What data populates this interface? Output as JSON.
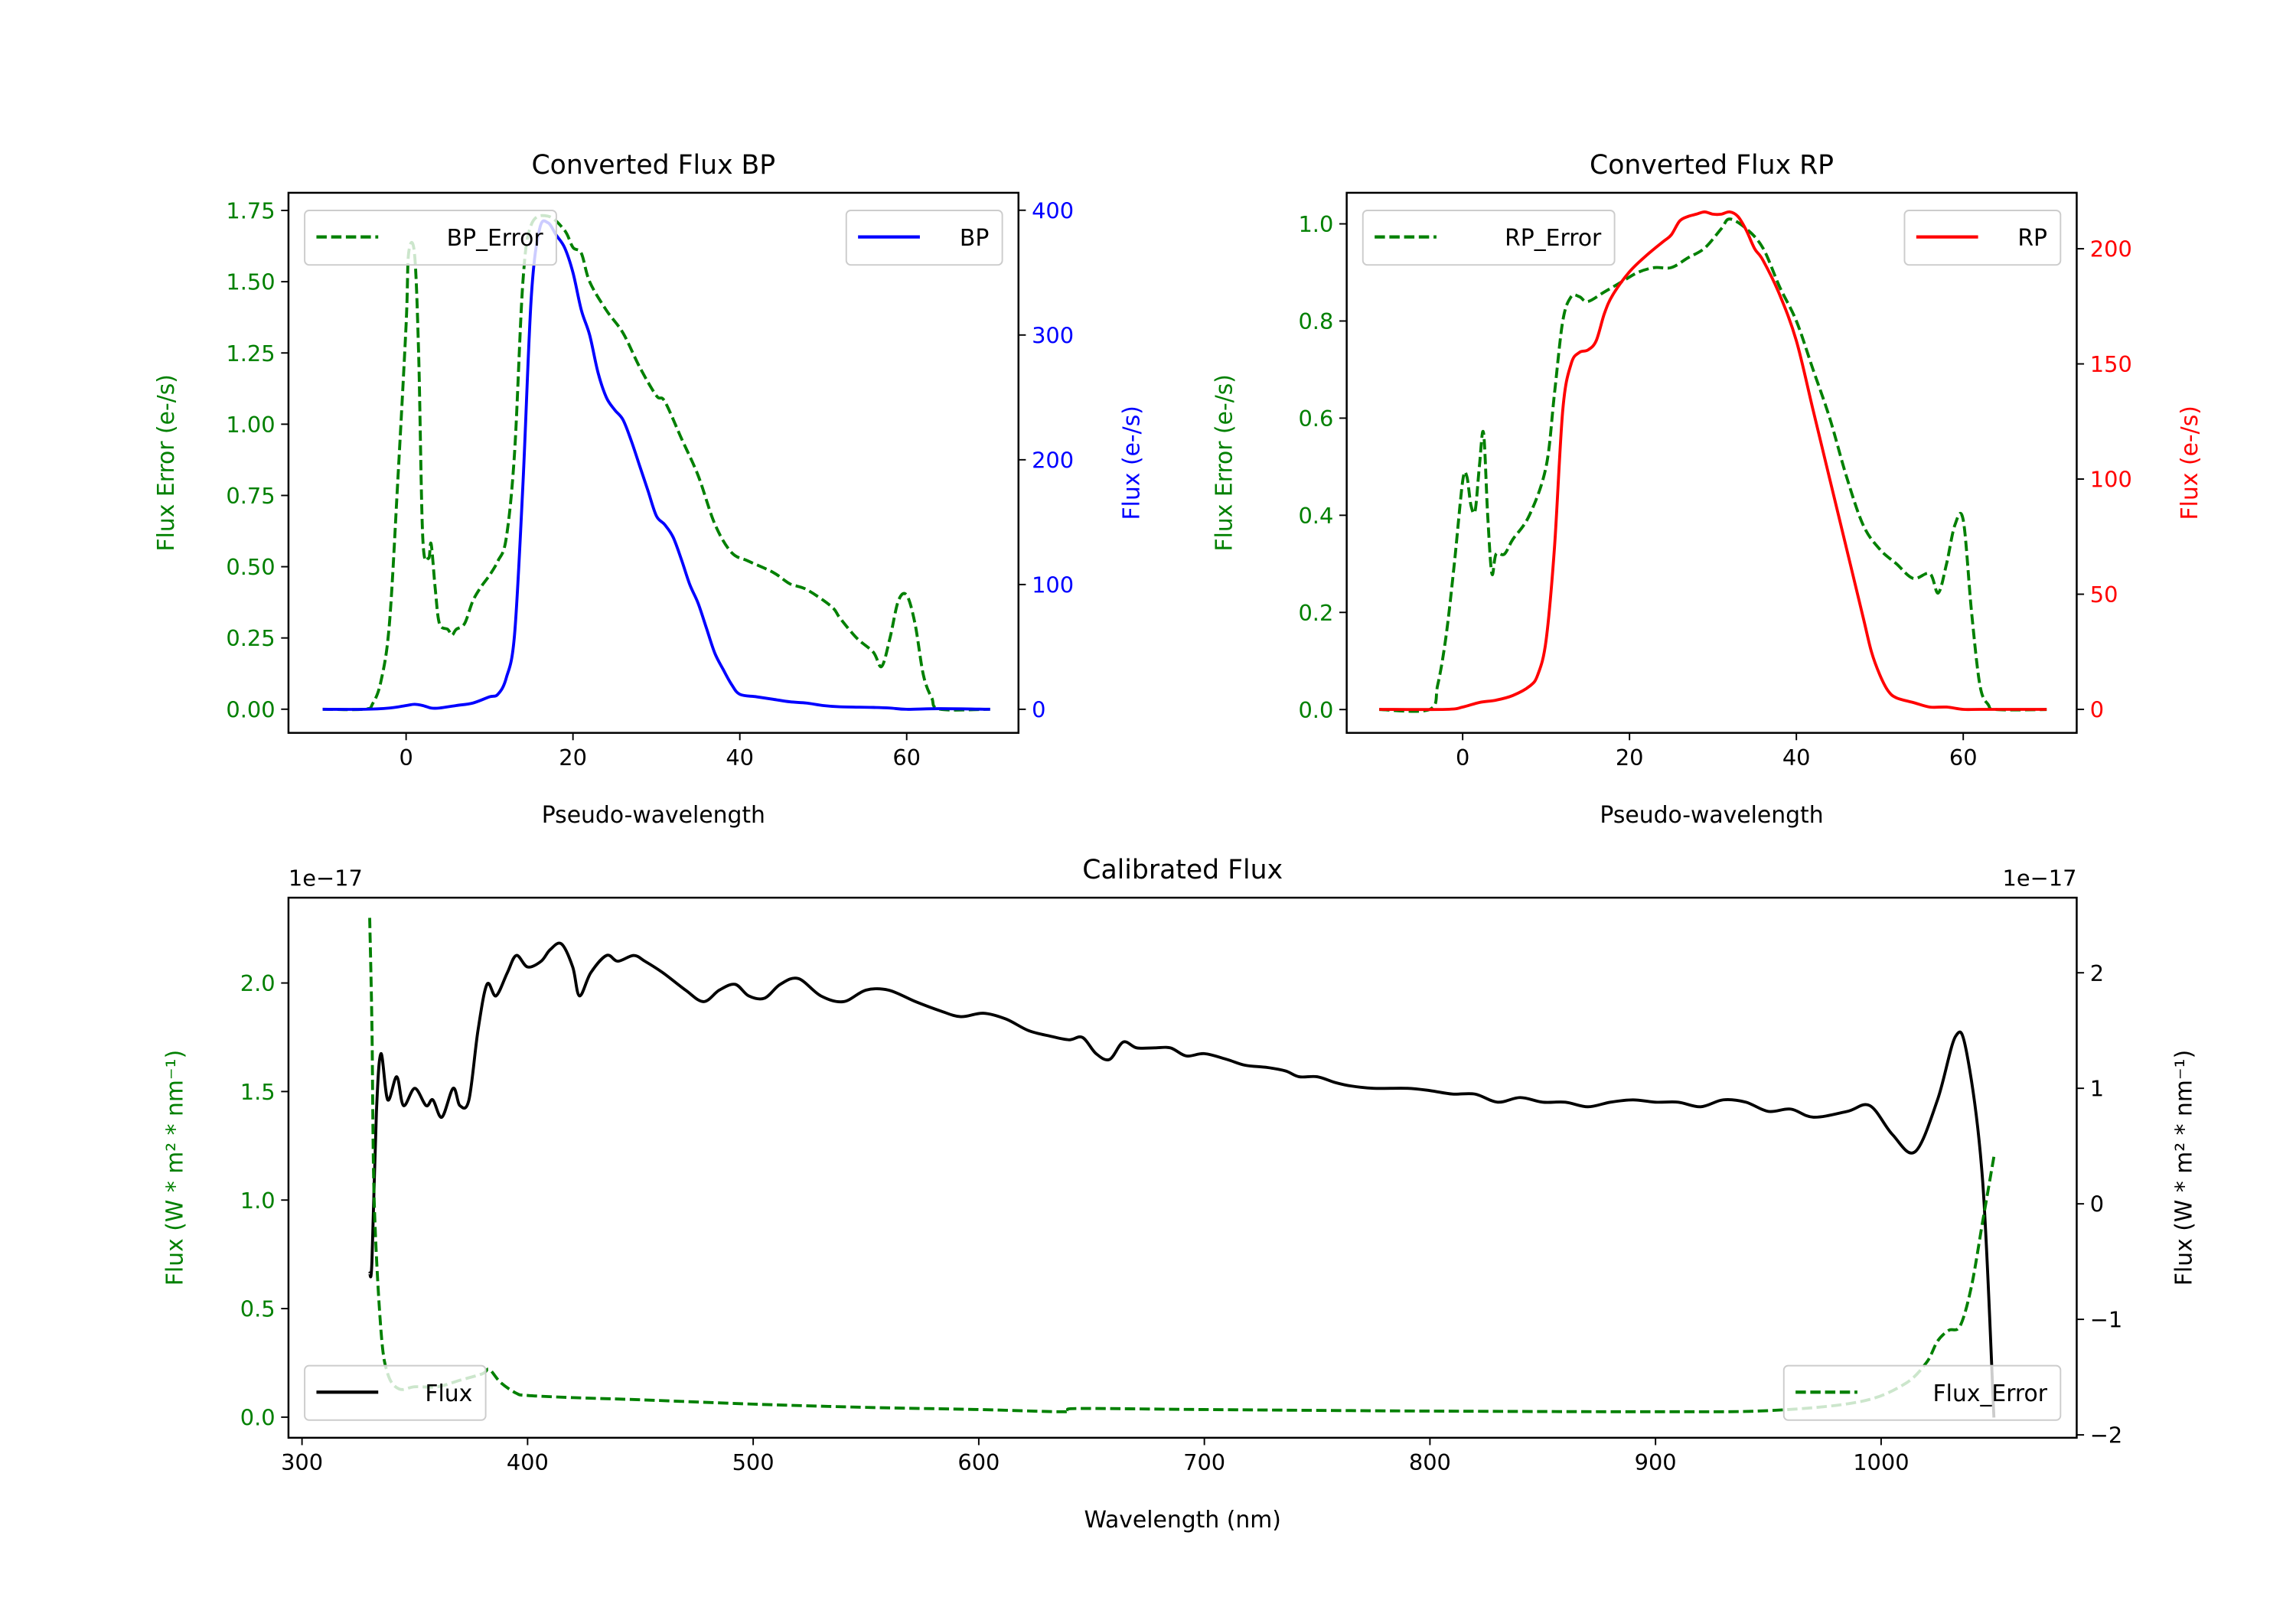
{
  "chart_data": [
    {
      "type": "line",
      "title": "Converted Flux BP",
      "xlabel": "Pseudo-wavelength",
      "ylabel_left": "Flux Error (e-/s)",
      "ylabel_right": "Flux (e-/s)",
      "left_color": "#008000",
      "right_color": "#0000ff",
      "xlim": [
        -14.1,
        73.4
      ],
      "ylim_left": [
        -0.083,
        1.812
      ],
      "ylim_right": [
        -18.9,
        414
      ],
      "xticks": [
        "0",
        "20",
        "40",
        "60"
      ],
      "yticks_left": [
        "0.00",
        "0.25",
        "0.50",
        "0.75",
        "1.00",
        "1.25",
        "1.50",
        "1.75"
      ],
      "yticks_right": [
        "0",
        "100",
        "200",
        "300",
        "400"
      ],
      "offset_left": "",
      "offset_right": "",
      "series": [
        {
          "name": "BP_Error",
          "axis": "left",
          "color": "#008000",
          "style": "dashed",
          "x": [
            -10,
            -5,
            -4,
            -3,
            -2,
            -1,
            0,
            0.3,
            1,
            1.5,
            2,
            2.7,
            3,
            3.5,
            4,
            5,
            5.5,
            6,
            7,
            8,
            9,
            10,
            11,
            12,
            13,
            14,
            15,
            17,
            19,
            20,
            21,
            22,
            24,
            26,
            28,
            30,
            31,
            33,
            35,
            37,
            39,
            41,
            44,
            46,
            48,
            51,
            52,
            54,
            56,
            57,
            58,
            59,
            60,
            61,
            62,
            63,
            64,
            70
          ],
          "y": [
            0,
            0,
            0.02,
            0.1,
            0.3,
            0.8,
            1.35,
            1.6,
            1.6,
            1.25,
            0.6,
            0.53,
            0.58,
            0.42,
            0.3,
            0.28,
            0.26,
            0.28,
            0.3,
            0.38,
            0.43,
            0.47,
            0.52,
            0.6,
            0.9,
            1.5,
            1.7,
            1.73,
            1.68,
            1.62,
            1.6,
            1.5,
            1.4,
            1.32,
            1.2,
            1.1,
            1.08,
            0.95,
            0.82,
            0.65,
            0.55,
            0.52,
            0.48,
            0.44,
            0.42,
            0.36,
            0.32,
            0.25,
            0.2,
            0.15,
            0.25,
            0.38,
            0.4,
            0.3,
            0.12,
            0.04,
            0,
            0
          ]
        },
        {
          "name": "BP",
          "axis": "right",
          "color": "#0000ff",
          "style": "solid",
          "x": [
            -10,
            -5,
            -2,
            0,
            1,
            2,
            3,
            4,
            6,
            8,
            10,
            11,
            12,
            13,
            14,
            15,
            16,
            17,
            18,
            19,
            20,
            21,
            22,
            23,
            24,
            25,
            26,
            27,
            28,
            29,
            30,
            31,
            32,
            33,
            34,
            35,
            36,
            37,
            38,
            39,
            40,
            42,
            44,
            46,
            48,
            50,
            52,
            56,
            58,
            60,
            64,
            70
          ],
          "y": [
            0,
            0,
            1,
            3,
            4,
            3,
            1,
            1,
            3,
            5,
            10,
            12,
            25,
            60,
            180,
            330,
            385,
            390,
            380,
            370,
            350,
            320,
            300,
            270,
            250,
            240,
            232,
            215,
            195,
            175,
            155,
            148,
            138,
            120,
            100,
            85,
            65,
            45,
            32,
            20,
            12,
            10,
            8,
            6,
            5,
            3,
            2,
            1.5,
            1,
            0,
            0.5,
            0
          ]
        }
      ],
      "legends": [
        [
          "BP_Error"
        ],
        [
          "BP"
        ]
      ]
    },
    {
      "type": "line",
      "title": "Converted Flux RP",
      "xlabel": "Pseudo-wavelength",
      "ylabel_left": "Flux Error (e-/s)",
      "ylabel_right": "Flux (e-/s)",
      "left_color": "#008000",
      "right_color": "#ff0000",
      "xlim": [
        -13.9,
        73.6
      ],
      "ylim_left": [
        -0.048,
        1.064
      ],
      "ylim_right": [
        -10.2,
        224.3
      ],
      "xticks": [
        "0",
        "20",
        "40",
        "60"
      ],
      "yticks_left": [
        "0.0",
        "0.2",
        "0.4",
        "0.6",
        "0.8",
        "1.0"
      ],
      "yticks_right": [
        "0",
        "50",
        "100",
        "150",
        "200"
      ],
      "offset_left": "",
      "offset_right": "",
      "series": [
        {
          "name": "RP_Error",
          "axis": "left",
          "color": "#008000",
          "style": "dashed",
          "x": [
            -10,
            -4,
            -3,
            -2,
            -1,
            0,
            0.5,
            1,
            1.5,
            2,
            2.5,
            3,
            3.5,
            4,
            5,
            6,
            8,
            10,
            11,
            12,
            13,
            14,
            15,
            17,
            19,
            21,
            23,
            25,
            27,
            29,
            31,
            32,
            34,
            36,
            38,
            40,
            42,
            44,
            46,
            48,
            50,
            52,
            54,
            56,
            57,
            58,
            59,
            60,
            61,
            62,
            63,
            64,
            70
          ],
          "y": [
            0,
            0,
            0.05,
            0.15,
            0.3,
            0.47,
            0.48,
            0.42,
            0.41,
            0.5,
            0.57,
            0.4,
            0.28,
            0.32,
            0.32,
            0.35,
            0.4,
            0.5,
            0.65,
            0.8,
            0.85,
            0.85,
            0.84,
            0.86,
            0.88,
            0.9,
            0.91,
            0.91,
            0.93,
            0.95,
            0.99,
            1.01,
            0.99,
            0.95,
            0.87,
            0.8,
            0.7,
            0.6,
            0.48,
            0.38,
            0.33,
            0.3,
            0.27,
            0.28,
            0.24,
            0.3,
            0.38,
            0.39,
            0.2,
            0.05,
            0.01,
            0,
            0
          ]
        },
        {
          "name": "RP",
          "axis": "right",
          "color": "#ff0000",
          "style": "solid",
          "x": [
            -10,
            -2,
            0,
            2,
            4,
            6,
            8,
            9,
            10,
            11,
            12,
            13,
            14,
            15,
            16,
            17,
            18,
            20,
            22,
            24,
            25,
            26,
            27,
            28,
            29,
            30,
            31,
            32,
            33,
            34,
            35,
            36,
            38,
            40,
            42,
            44,
            46,
            48,
            49,
            50,
            51,
            52,
            54,
            56,
            58,
            60,
            62,
            70
          ],
          "y": [
            0,
            0,
            1,
            3,
            4,
            6,
            10,
            15,
            30,
            70,
            130,
            150,
            155,
            156,
            160,
            172,
            180,
            190,
            197,
            203,
            206,
            212,
            214,
            215,
            216,
            215,
            215,
            216,
            214,
            208,
            200,
            195,
            180,
            160,
            130,
            100,
            70,
            40,
            25,
            15,
            8,
            5,
            3,
            1,
            1,
            0,
            0,
            0
          ]
        }
      ],
      "legends": [
        [
          "RP_Error"
        ],
        [
          "RP"
        ]
      ]
    },
    {
      "type": "line",
      "title": "Calibrated Flux",
      "xlabel": "Wavelength (nm)",
      "ylabel_left": "Flux (W * m² * nm⁻¹)",
      "ylabel_right": "Flux (W * m² * nm⁻¹)",
      "left_color": "#008000",
      "right_color": "#000000",
      "xlim": [
        294,
        1086.7
      ],
      "ylim_left": [
        -0.095,
        2.393
      ],
      "ylim_right": [
        -2.025,
        2.65
      ],
      "xticks": [
        "300",
        "400",
        "500",
        "600",
        "700",
        "800",
        "900",
        "1000"
      ],
      "yticks_left": [
        "0.0",
        "0.5",
        "1.0",
        "1.5",
        "2.0"
      ],
      "yticks_right": [
        "−2",
        "−1",
        "0",
        "1",
        "2"
      ],
      "offset_left": "1e−17",
      "offset_right": "1e−17",
      "series": [
        {
          "name": "Flux",
          "axis": "right",
          "color": "#000000",
          "style": "solid",
          "x": [
            330,
            331,
            333,
            335,
            338,
            342,
            345,
            350,
            355,
            358,
            362,
            367,
            370,
            374,
            378,
            382,
            386,
            391,
            395,
            400,
            406,
            410,
            415,
            420,
            423,
            428,
            435,
            440,
            447,
            452,
            460,
            470,
            478,
            485,
            492,
            498,
            505,
            512,
            520,
            530,
            540,
            550,
            560,
            572,
            583,
            592,
            602,
            612,
            622,
            632,
            640,
            646,
            652,
            658,
            664,
            670,
            678,
            685,
            692,
            700,
            710,
            718,
            728,
            736,
            742,
            750,
            758,
            765,
            775,
            790,
            800,
            810,
            820,
            830,
            840,
            850,
            860,
            870,
            880,
            890,
            900,
            910,
            920,
            930,
            940,
            950,
            960,
            970,
            985,
            995,
            1005,
            1015,
            1025,
            1033,
            1038,
            1045,
            1050
          ],
          "y": [
            -0.6,
            -0.5,
            0.8,
            1.3,
            0.9,
            1.1,
            0.85,
            1.0,
            0.85,
            0.9,
            0.75,
            1.0,
            0.85,
            0.9,
            1.5,
            1.9,
            1.8,
            2.0,
            2.15,
            2.05,
            2.1,
            2.2,
            2.25,
            2.05,
            1.8,
            2.0,
            2.15,
            2.1,
            2.15,
            2.1,
            2.0,
            1.85,
            1.75,
            1.85,
            1.9,
            1.8,
            1.78,
            1.9,
            1.95,
            1.8,
            1.75,
            1.85,
            1.85,
            1.75,
            1.67,
            1.62,
            1.65,
            1.6,
            1.5,
            1.45,
            1.42,
            1.44,
            1.3,
            1.25,
            1.4,
            1.35,
            1.35,
            1.35,
            1.28,
            1.3,
            1.25,
            1.2,
            1.18,
            1.15,
            1.1,
            1.1,
            1.05,
            1.02,
            1.0,
            1.0,
            0.98,
            0.95,
            0.95,
            0.88,
            0.92,
            0.88,
            0.88,
            0.84,
            0.88,
            0.9,
            0.88,
            0.88,
            0.84,
            0.9,
            0.88,
            0.8,
            0.82,
            0.75,
            0.8,
            0.85,
            0.6,
            0.45,
            0.9,
            1.45,
            1.3,
            0.2,
            -1.85
          ]
        },
        {
          "name": "Flux_Error",
          "axis": "left",
          "color": "#008000",
          "style": "dashed",
          "x": [
            330,
            331,
            332,
            335,
            338,
            343,
            350,
            360,
            370,
            380,
            383,
            388,
            395,
            400,
            420,
            450,
            500,
            550,
            600,
            635,
            640,
            645,
            700,
            800,
            900,
            950,
            990,
            1010,
            1020,
            1025,
            1030,
            1035,
            1040,
            1045,
            1050
          ],
          "y": [
            2.3,
            1.8,
            1.0,
            0.4,
            0.2,
            0.13,
            0.14,
            0.14,
            0.17,
            0.2,
            0.22,
            0.16,
            0.11,
            0.1,
            0.09,
            0.08,
            0.06,
            0.045,
            0.035,
            0.025,
            0.03,
            0.04,
            0.035,
            0.028,
            0.025,
            0.03,
            0.07,
            0.15,
            0.25,
            0.35,
            0.4,
            0.42,
            0.6,
            0.9,
            1.2
          ]
        }
      ],
      "legends": [
        [
          "Flux"
        ],
        [
          "Flux_Error"
        ]
      ]
    }
  ]
}
